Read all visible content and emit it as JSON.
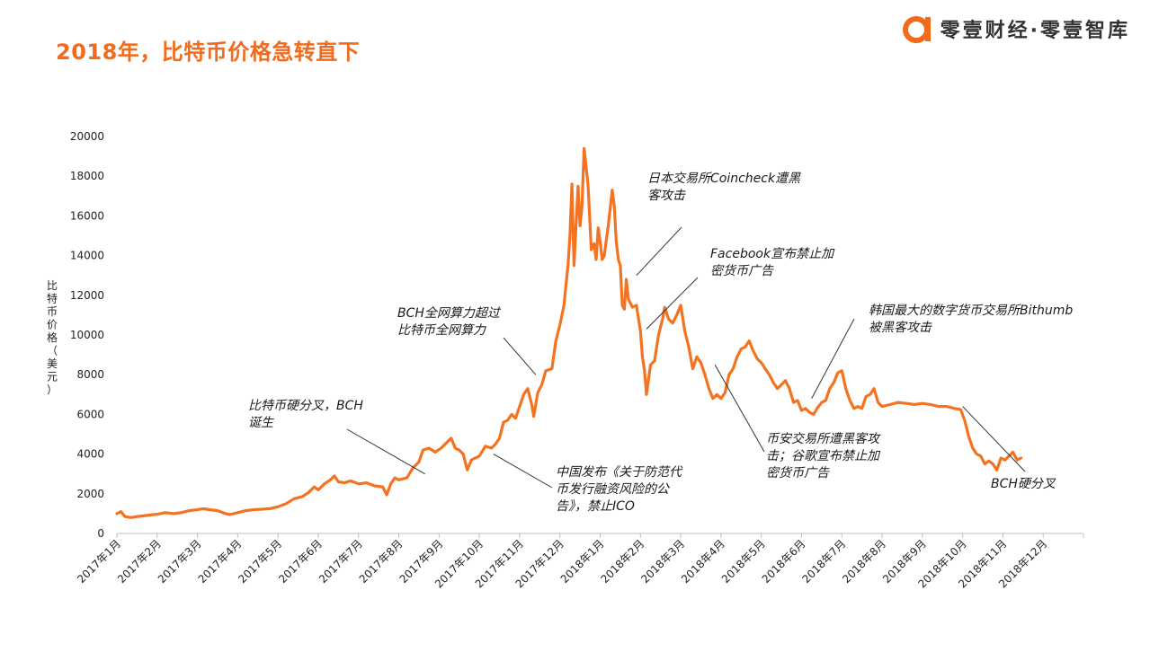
{
  "title": "2018年，比特币价格急转直下",
  "brand": {
    "name": "零壹财经·零壹智库",
    "logo_icon": "lingyi-logo-icon",
    "color": "#f26b1d"
  },
  "chart_data": {
    "type": "line",
    "ylabel": "比特币价格（美元）",
    "ylim": [
      0,
      20000
    ],
    "yticks": [
      0,
      2000,
      4000,
      6000,
      8000,
      10000,
      12000,
      14000,
      16000,
      18000,
      20000
    ],
    "xlim": [
      0,
      24
    ],
    "x_tick_labels": [
      "2017年1月",
      "2017年2月",
      "2017年3月",
      "2017年4月",
      "2017年5月",
      "2017年6月",
      "2017年7月",
      "2017年8月",
      "2017年9月",
      "2017年10月",
      "2017年11月",
      "2017年12月",
      "2018年1月",
      "2018年2月",
      "2018年3月",
      "2018年4月",
      "2018年5月",
      "2018年6月",
      "2018年7月",
      "2018年8月",
      "2018年9月",
      "2018年10月",
      "2018年11月",
      "2018年12月"
    ],
    "line_color": "#f47321",
    "series": [
      {
        "points": [
          [
            0,
            1000
          ],
          [
            0.1,
            1100
          ],
          [
            0.2,
            850
          ],
          [
            0.35,
            800
          ],
          [
            0.5,
            850
          ],
          [
            0.7,
            900
          ],
          [
            0.9,
            950
          ],
          [
            1.0,
            970
          ],
          [
            1.2,
            1050
          ],
          [
            1.4,
            1000
          ],
          [
            1.6,
            1050
          ],
          [
            1.8,
            1150
          ],
          [
            2.0,
            1200
          ],
          [
            2.15,
            1250
          ],
          [
            2.3,
            1200
          ],
          [
            2.5,
            1150
          ],
          [
            2.7,
            1000
          ],
          [
            2.8,
            950
          ],
          [
            3.0,
            1050
          ],
          [
            3.2,
            1150
          ],
          [
            3.4,
            1200
          ],
          [
            3.6,
            1220
          ],
          [
            3.8,
            1250
          ],
          [
            4.0,
            1350
          ],
          [
            4.2,
            1500
          ],
          [
            4.4,
            1750
          ],
          [
            4.6,
            1850
          ],
          [
            4.75,
            2050
          ],
          [
            4.9,
            2350
          ],
          [
            5.0,
            2200
          ],
          [
            5.15,
            2500
          ],
          [
            5.3,
            2700
          ],
          [
            5.4,
            2900
          ],
          [
            5.5,
            2600
          ],
          [
            5.65,
            2550
          ],
          [
            5.8,
            2650
          ],
          [
            6.0,
            2500
          ],
          [
            6.2,
            2550
          ],
          [
            6.4,
            2400
          ],
          [
            6.6,
            2350
          ],
          [
            6.7,
            1950
          ],
          [
            6.8,
            2500
          ],
          [
            6.9,
            2800
          ],
          [
            7.0,
            2700
          ],
          [
            7.2,
            2800
          ],
          [
            7.35,
            3300
          ],
          [
            7.5,
            3600
          ],
          [
            7.6,
            4200
          ],
          [
            7.75,
            4300
          ],
          [
            7.9,
            4100
          ],
          [
            8.05,
            4300
          ],
          [
            8.2,
            4600
          ],
          [
            8.3,
            4800
          ],
          [
            8.4,
            4300
          ],
          [
            8.5,
            4200
          ],
          [
            8.6,
            4000
          ],
          [
            8.7,
            3200
          ],
          [
            8.8,
            3700
          ],
          [
            8.9,
            3800
          ],
          [
            9.0,
            3900
          ],
          [
            9.15,
            4400
          ],
          [
            9.3,
            4300
          ],
          [
            9.4,
            4500
          ],
          [
            9.5,
            4800
          ],
          [
            9.6,
            5600
          ],
          [
            9.7,
            5700
          ],
          [
            9.8,
            6000
          ],
          [
            9.9,
            5800
          ],
          [
            10.0,
            6400
          ],
          [
            10.1,
            7000
          ],
          [
            10.2,
            7300
          ],
          [
            10.3,
            6500
          ],
          [
            10.35,
            5900
          ],
          [
            10.45,
            7100
          ],
          [
            10.55,
            7500
          ],
          [
            10.65,
            8200
          ],
          [
            10.8,
            8300
          ],
          [
            10.9,
            9700
          ],
          [
            11.0,
            10500
          ],
          [
            11.1,
            11500
          ],
          [
            11.2,
            13500
          ],
          [
            11.25,
            15000
          ],
          [
            11.3,
            17600
          ],
          [
            11.35,
            13500
          ],
          [
            11.45,
            17500
          ],
          [
            11.5,
            15500
          ],
          [
            11.55,
            16500
          ],
          [
            11.6,
            19400
          ],
          [
            11.65,
            18500
          ],
          [
            11.7,
            17500
          ],
          [
            11.78,
            14300
          ],
          [
            11.85,
            14600
          ],
          [
            11.9,
            13800
          ],
          [
            11.95,
            15400
          ],
          [
            12.0,
            14700
          ],
          [
            12.05,
            13800
          ],
          [
            12.1,
            14000
          ],
          [
            12.2,
            15500
          ],
          [
            12.3,
            17300
          ],
          [
            12.35,
            16500
          ],
          [
            12.4,
            14700
          ],
          [
            12.45,
            13800
          ],
          [
            12.5,
            13500
          ],
          [
            12.55,
            11500
          ],
          [
            12.6,
            11300
          ],
          [
            12.65,
            12800
          ],
          [
            12.7,
            11800
          ],
          [
            12.8,
            11400
          ],
          [
            12.9,
            11500
          ],
          [
            13.0,
            10200
          ],
          [
            13.05,
            8900
          ],
          [
            13.1,
            8200
          ],
          [
            13.15,
            7000
          ],
          [
            13.25,
            8500
          ],
          [
            13.35,
            8700
          ],
          [
            13.45,
            10000
          ],
          [
            13.55,
            10800
          ],
          [
            13.6,
            11400
          ],
          [
            13.7,
            10800
          ],
          [
            13.8,
            10600
          ],
          [
            13.9,
            11000
          ],
          [
            14.0,
            11500
          ],
          [
            14.1,
            10200
          ],
          [
            14.2,
            9400
          ],
          [
            14.3,
            8300
          ],
          [
            14.4,
            8900
          ],
          [
            14.5,
            8600
          ],
          [
            14.6,
            8000
          ],
          [
            14.7,
            7300
          ],
          [
            14.8,
            6800
          ],
          [
            14.9,
            7000
          ],
          [
            15.0,
            6800
          ],
          [
            15.1,
            7100
          ],
          [
            15.2,
            8000
          ],
          [
            15.3,
            8300
          ],
          [
            15.4,
            8900
          ],
          [
            15.5,
            9300
          ],
          [
            15.6,
            9400
          ],
          [
            15.7,
            9700
          ],
          [
            15.8,
            9200
          ],
          [
            15.9,
            8800
          ],
          [
            16.0,
            8600
          ],
          [
            16.1,
            8300
          ],
          [
            16.2,
            8000
          ],
          [
            16.3,
            7600
          ],
          [
            16.4,
            7300
          ],
          [
            16.5,
            7500
          ],
          [
            16.6,
            7700
          ],
          [
            16.7,
            7300
          ],
          [
            16.8,
            6600
          ],
          [
            16.9,
            6700
          ],
          [
            17.0,
            6200
          ],
          [
            17.1,
            6300
          ],
          [
            17.2,
            6100
          ],
          [
            17.3,
            6000
          ],
          [
            17.4,
            6350
          ],
          [
            17.5,
            6600
          ],
          [
            17.6,
            6700
          ],
          [
            17.7,
            7300
          ],
          [
            17.8,
            7600
          ],
          [
            17.9,
            8100
          ],
          [
            18.0,
            8200
          ],
          [
            18.1,
            7300
          ],
          [
            18.2,
            6700
          ],
          [
            18.3,
            6300
          ],
          [
            18.4,
            6400
          ],
          [
            18.5,
            6300
          ],
          [
            18.6,
            6900
          ],
          [
            18.7,
            7000
          ],
          [
            18.8,
            7300
          ],
          [
            18.9,
            6600
          ],
          [
            19.0,
            6400
          ],
          [
            19.2,
            6500
          ],
          [
            19.4,
            6600
          ],
          [
            19.6,
            6550
          ],
          [
            19.8,
            6500
          ],
          [
            20.0,
            6550
          ],
          [
            20.2,
            6500
          ],
          [
            20.4,
            6400
          ],
          [
            20.6,
            6400
          ],
          [
            20.8,
            6300
          ],
          [
            20.95,
            6250
          ],
          [
            21.05,
            5700
          ],
          [
            21.15,
            4900
          ],
          [
            21.25,
            4300
          ],
          [
            21.35,
            4000
          ],
          [
            21.45,
            3900
          ],
          [
            21.55,
            3500
          ],
          [
            21.65,
            3650
          ],
          [
            21.75,
            3500
          ],
          [
            21.85,
            3200
          ],
          [
            21.95,
            3800
          ],
          [
            22.05,
            3700
          ],
          [
            22.15,
            3900
          ],
          [
            22.25,
            4100
          ],
          [
            22.35,
            3700
          ],
          [
            22.45,
            3800
          ]
        ]
      }
    ],
    "annotations": [
      {
        "lines": [
          "比特币硬分叉，BCH",
          "诞生"
        ],
        "target": [
          7.65,
          3000
        ]
      },
      {
        "lines": [
          "BCH全网算力超过",
          "比特币全网算力"
        ],
        "target": [
          10.4,
          8000
        ]
      },
      {
        "lines": [
          "中国发布《关于防范代",
          "币发行融资风险的公",
          "告》，禁止ICO"
        ],
        "target": [
          9.35,
          4000
        ]
      },
      {
        "lines": [
          "日本交易所Coincheck遭黑",
          "客攻击"
        ],
        "target": [
          12.9,
          13000
        ]
      },
      {
        "lines": [
          "Facebook宣布禁止加",
          "密货币广告"
        ],
        "target": [
          13.15,
          10300
        ]
      },
      {
        "lines": [
          "币安交易所遭黑客攻",
          "击；谷歌宣布禁止加",
          "密货币广告"
        ],
        "target": [
          14.85,
          8500
        ]
      },
      {
        "lines": [
          "韩国最大的数字货币交易所Bithumb",
          "被黑客攻击"
        ],
        "target": [
          17.25,
          6800
        ]
      },
      {
        "lines": [
          "BCH硬分叉"
        ],
        "target": [
          21.0,
          6400
        ]
      }
    ]
  }
}
